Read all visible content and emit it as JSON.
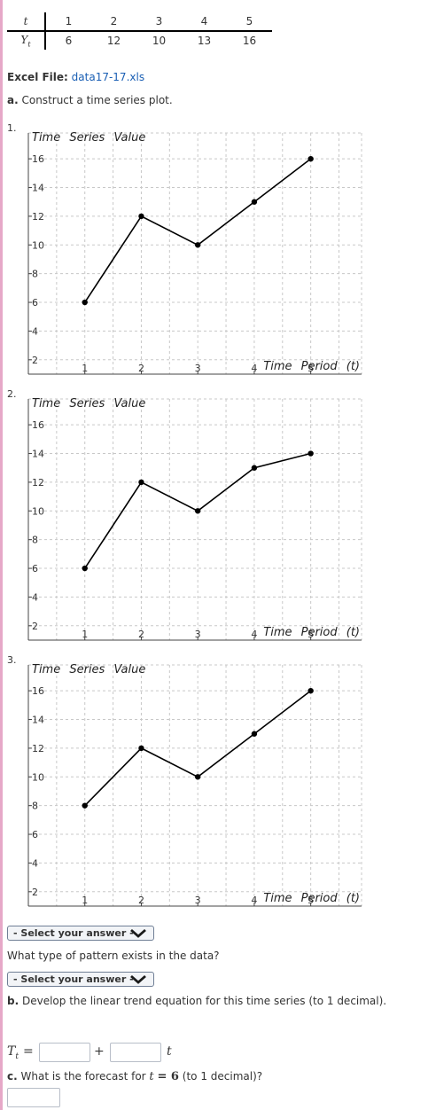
{
  "table": {
    "row_t_label": "t",
    "row_y_label": "Yt",
    "t_values": [
      "1",
      "2",
      "3",
      "4",
      "5"
    ],
    "y_values": [
      "6",
      "12",
      "10",
      "13",
      "16"
    ]
  },
  "excel": {
    "label": "Excel File:",
    "filename": "data17-17.xls"
  },
  "question_a": {
    "letter": "a.",
    "text": "Construct a time series plot."
  },
  "options": [
    {
      "number": "1."
    },
    {
      "number": "2."
    },
    {
      "number": "3."
    }
  ],
  "chart_data": [
    {
      "type": "line",
      "title": "",
      "xlabel": "Time Period (t)",
      "ylabel": "Time Series Value",
      "x": [
        1,
        2,
        3,
        4,
        5
      ],
      "y": [
        6,
        12,
        10,
        13,
        16
      ],
      "xticks": [
        1,
        2,
        3,
        4,
        5
      ],
      "yticks": [
        2,
        4,
        6,
        8,
        10,
        12,
        14,
        16
      ],
      "xlim": [
        0,
        5.9
      ],
      "ylim": [
        1,
        17.8
      ],
      "grid": true,
      "line_color": "#000000",
      "grid_color": "#c8c8c8"
    },
    {
      "type": "line",
      "title": "",
      "xlabel": "Time Period (t)",
      "ylabel": "Time Series Value",
      "x": [
        1,
        2,
        3,
        4,
        5
      ],
      "y": [
        6,
        12,
        10,
        13,
        14
      ],
      "xticks": [
        1,
        2,
        3,
        4,
        5
      ],
      "yticks": [
        2,
        4,
        6,
        8,
        10,
        12,
        14,
        16
      ],
      "xlim": [
        0,
        5.9
      ],
      "ylim": [
        1,
        17.8
      ],
      "grid": true,
      "line_color": "#000000",
      "grid_color": "#c8c8c8"
    },
    {
      "type": "line",
      "title": "",
      "xlabel": "Time Period (t)",
      "ylabel": "Time Series Value",
      "x": [
        1,
        2,
        3,
        4,
        5
      ],
      "y": [
        8,
        12,
        10,
        13,
        16
      ],
      "xticks": [
        1,
        2,
        3,
        4,
        5
      ],
      "yticks": [
        2,
        4,
        6,
        8,
        10,
        12,
        14,
        16
      ],
      "xlim": [
        0,
        5.9
      ],
      "ylim": [
        1,
        17.8
      ],
      "grid": true,
      "line_color": "#000000",
      "grid_color": "#c8c8c8"
    }
  ],
  "select_plot": {
    "placeholder": "- Select your answer -"
  },
  "pattern_question": "What type of pattern exists in the data?",
  "select_pattern": {
    "placeholder": "- Select your answer -"
  },
  "question_b": {
    "letter": "b.",
    "text": "Develop the linear trend equation for this time series (to 1 decimal)."
  },
  "equation": {
    "lhs": "Tt",
    "equals": "=",
    "plus": "+",
    "var": "t",
    "intercept_value": "",
    "slope_value": ""
  },
  "question_c": {
    "letter": "c.",
    "text_before": "What is the forecast for",
    "var": "t",
    "equals_value": "= 6",
    "text_after": "(to 1 decimal)?",
    "forecast_value": ""
  }
}
